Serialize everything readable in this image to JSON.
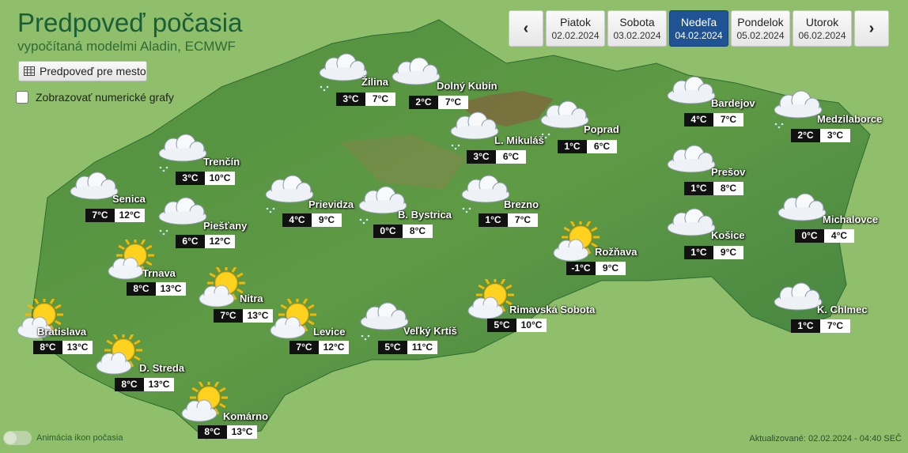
{
  "header": {
    "title": "Predpoveď počasia",
    "subtitle": "vypočítaná modelmi Aladin, ECMWF",
    "city_forecast_button": "Predpoveď pre mesto",
    "numeric_graphs_label": "Zobrazovať numerické grafy",
    "numeric_graphs_checked": false
  },
  "days": [
    {
      "name": "Piatok",
      "date": "02.02.2024"
    },
    {
      "name": "Sobota",
      "date": "03.02.2024"
    },
    {
      "name": "Nedeľa",
      "date": "04.02.2024",
      "active": true
    },
    {
      "name": "Pondelok",
      "date": "05.02.2024"
    },
    {
      "name": "Utorok",
      "date": "06.02.2024"
    }
  ],
  "nav": {
    "prev": "‹",
    "next": "›"
  },
  "cities": [
    {
      "name": "Žilina",
      "min": "3°C",
      "max": "7°C",
      "icon": "cloud-drizzle-icon"
    },
    {
      "name": "Dolný Kubín",
      "min": "2°C",
      "max": "7°C",
      "icon": "cloud-icon"
    },
    {
      "name": "L. Mikuláš",
      "min": "3°C",
      "max": "6°C",
      "icon": "cloud-drizzle-icon"
    },
    {
      "name": "Poprad",
      "min": "1°C",
      "max": "6°C",
      "icon": "cloud-drizzle-icon"
    },
    {
      "name": "Bardejov",
      "min": "4°C",
      "max": "7°C",
      "icon": "cloud-icon"
    },
    {
      "name": "Medzilaborce",
      "min": "2°C",
      "max": "3°C",
      "icon": "cloud-drizzle-icon"
    },
    {
      "name": "Trenčín",
      "min": "3°C",
      "max": "10°C",
      "icon": "cloud-drizzle-icon"
    },
    {
      "name": "Senica",
      "min": "7°C",
      "max": "12°C",
      "icon": "cloud-icon"
    },
    {
      "name": "Prievidza",
      "min": "4°C",
      "max": "9°C",
      "icon": "cloud-drizzle-icon"
    },
    {
      "name": "B. Bystrica",
      "min": "0°C",
      "max": "8°C",
      "icon": "cloud-drizzle-icon"
    },
    {
      "name": "Brezno",
      "min": "1°C",
      "max": "7°C",
      "icon": "cloud-drizzle-icon"
    },
    {
      "name": "Prešov",
      "min": "1°C",
      "max": "8°C",
      "icon": "cloud-icon"
    },
    {
      "name": "Michalovce",
      "min": "0°C",
      "max": "4°C",
      "icon": "cloud-icon"
    },
    {
      "name": "Piešťany",
      "min": "6°C",
      "max": "12°C",
      "icon": "cloud-drizzle-icon"
    },
    {
      "name": "Košice",
      "min": "1°C",
      "max": "9°C",
      "icon": "cloud-icon"
    },
    {
      "name": "Rožňava",
      "min": "-1°C",
      "max": "9°C",
      "icon": "sun-cloud-icon"
    },
    {
      "name": "Trnava",
      "min": "8°C",
      "max": "13°C",
      "icon": "sun-cloud-icon"
    },
    {
      "name": "Nitra",
      "min": "7°C",
      "max": "13°C",
      "icon": "sun-cloud-icon"
    },
    {
      "name": "Rimavská Sobota",
      "min": "5°C",
      "max": "10°C",
      "icon": "sun-cloud-icon"
    },
    {
      "name": "K. Chlmec",
      "min": "1°C",
      "max": "7°C",
      "icon": "cloud-icon"
    },
    {
      "name": "Bratislava",
      "min": "8°C",
      "max": "13°C",
      "icon": "sun-cloud-icon"
    },
    {
      "name": "Levice",
      "min": "7°C",
      "max": "12°C",
      "icon": "sun-cloud-icon"
    },
    {
      "name": "Veľký Krtíš",
      "min": "5°C",
      "max": "11°C",
      "icon": "cloud-drizzle-icon"
    },
    {
      "name": "D. Streda",
      "min": "8°C",
      "max": "13°C",
      "icon": "sun-cloud-icon"
    },
    {
      "name": "Komárno",
      "min": "8°C",
      "max": "13°C",
      "icon": "sun-cloud-icon"
    }
  ],
  "footer": {
    "animation_label": "Animácia ikon počasia",
    "updated": "Aktualizované: 02.02.2024 - 04:40 SEČ"
  },
  "colors": {
    "active_day": "#1f5394",
    "title": "#1b5e3a"
  }
}
